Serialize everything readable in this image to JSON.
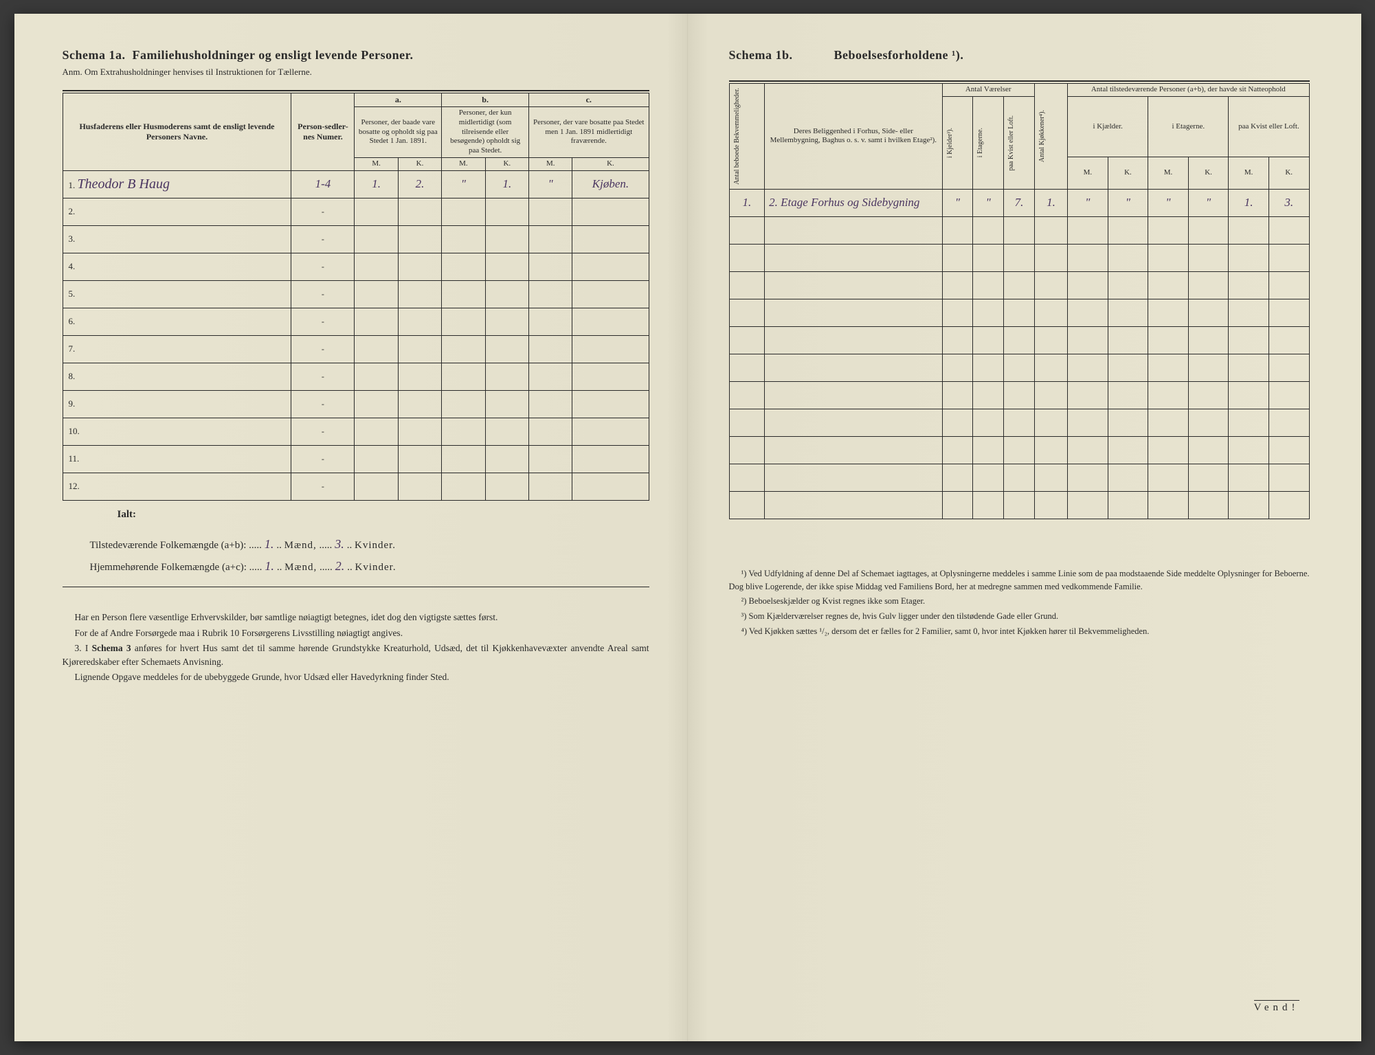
{
  "left": {
    "schema_label": "Schema 1a.",
    "schema_title": "Familiehusholdninger og ensligt levende Personer.",
    "anm": "Anm. Om Extrahusholdninger henvises til Instruktionen for Tællerne.",
    "col_names": "Husfaderens eller Husmoderens samt de ensligt levende Personers Navne.",
    "col_person": "Person-sedler-nes Numer.",
    "group_a": "a.",
    "group_b": "b.",
    "group_c": "c.",
    "col_a": "Personer, der baade vare bosatte og opholdt sig paa Stedet 1 Jan. 1891.",
    "col_b": "Personer, der kun midlertidigt (som tilreisende eller besøgende) opholdt sig paa Stedet.",
    "col_c": "Personer, der vare bosatte paa Stedet men 1 Jan. 1891 midlertidigt fraværende.",
    "m": "M.",
    "k": "K.",
    "rows": [
      {
        "n": "1.",
        "name": "Theodor B Haug",
        "pn": "1-4",
        "am": "1.",
        "ak": "2.",
        "bm": "\"",
        "bk": "1.",
        "cm": "\"",
        "ck": "Kjøben."
      },
      {
        "n": "2.",
        "name": "",
        "pn": "-",
        "am": "",
        "ak": "",
        "bm": "",
        "bk": "",
        "cm": "",
        "ck": ""
      },
      {
        "n": "3.",
        "name": "",
        "pn": "-",
        "am": "",
        "ak": "",
        "bm": "",
        "bk": "",
        "cm": "",
        "ck": ""
      },
      {
        "n": "4.",
        "name": "",
        "pn": "-",
        "am": "",
        "ak": "",
        "bm": "",
        "bk": "",
        "cm": "",
        "ck": ""
      },
      {
        "n": "5.",
        "name": "",
        "pn": "-",
        "am": "",
        "ak": "",
        "bm": "",
        "bk": "",
        "cm": "",
        "ck": ""
      },
      {
        "n": "6.",
        "name": "",
        "pn": "-",
        "am": "",
        "ak": "",
        "bm": "",
        "bk": "",
        "cm": "",
        "ck": ""
      },
      {
        "n": "7.",
        "name": "",
        "pn": "-",
        "am": "",
        "ak": "",
        "bm": "",
        "bk": "",
        "cm": "",
        "ck": ""
      },
      {
        "n": "8.",
        "name": "",
        "pn": "-",
        "am": "",
        "ak": "",
        "bm": "",
        "bk": "",
        "cm": "",
        "ck": ""
      },
      {
        "n": "9.",
        "name": "",
        "pn": "-",
        "am": "",
        "ak": "",
        "bm": "",
        "bk": "",
        "cm": "",
        "ck": ""
      },
      {
        "n": "10.",
        "name": "",
        "pn": "-",
        "am": "",
        "ak": "",
        "bm": "",
        "bk": "",
        "cm": "",
        "ck": ""
      },
      {
        "n": "11.",
        "name": "",
        "pn": "-",
        "am": "",
        "ak": "",
        "bm": "",
        "bk": "",
        "cm": "",
        "ck": ""
      },
      {
        "n": "12.",
        "name": "",
        "pn": "-",
        "am": "",
        "ak": "",
        "bm": "",
        "bk": "",
        "cm": "",
        "ck": ""
      }
    ],
    "ialt": "Ialt:",
    "sum1_label": "Tilstedeværende Folkemængde (a+b):",
    "sum1_m": "1.",
    "sum1_mu": "Mænd,",
    "sum1_k": "3.",
    "sum1_ku": "Kvinder.",
    "sum2_label": "Hjemmehørende Folkemængde (a+c):",
    "sum2_m": "1.",
    "sum2_mu": "Mænd,",
    "sum2_k": "2.",
    "sum2_ku": "Kvinder.",
    "instr1": "Har en Person flere væsentlige Erhvervskilder, bør samtlige nøiagtigt betegnes, idet dog den vigtigste sættes først.",
    "instr2": "For de af Andre Forsørgede maa i Rubrik 10 Forsørgerens Livsstilling nøiagtigt angives.",
    "instr3a": "3. I ",
    "instr3b": "Schema 3",
    "instr3c": " anføres for hvert Hus samt det til samme hørende Grundstykke Kreaturhold, Udsæd, det til Kjøkkenhavevæxter anvendte Areal samt Kjøreredskaber efter Schemaets Anvisning.",
    "instr4": "Lignende Opgave meddeles for de ubebyggede Grunde, hvor Udsæd eller Havedyrkning finder Sted."
  },
  "right": {
    "schema_label": "Schema 1b.",
    "schema_title": "Beboelsesforholdene ¹).",
    "col_bekvem": "Antal beboede Bekvemmeligheder.",
    "col_belig": "Deres Beliggenhed i Forhus, Side- eller Mellembygning, Baghus o. s. v. samt i hvilken Etage²).",
    "grp_antal": "Antal Værelser",
    "col_kjelder": "i Kjelder³).",
    "col_etagerne": "i Etagerne.",
    "col_kvist": "paa Kvist eller Loft.",
    "col_kjokken": "Antal Kjøkkener⁴).",
    "grp_present": "Antal tilstedeværende Personer (a+b), der havde sit Natteophold",
    "col_p_kjael": "i Kjælder.",
    "col_p_etag": "i Etagerne.",
    "col_p_kvist": "paa Kvist eller Loft.",
    "m": "M.",
    "k": "K.",
    "rows": [
      {
        "n": "1.",
        "belig": "2. Etage Forhus og Sidebygning",
        "kj": "\"",
        "et": "\"",
        "kv": "7.",
        "kk": "1.",
        "km": "\"",
        "kk2": "\"",
        "em": "\"",
        "ek": "\"",
        "lm": "1.",
        "lk": "3."
      },
      {
        "n": "",
        "belig": "",
        "kj": "",
        "et": "",
        "kv": "",
        "kk": "",
        "km": "",
        "kk2": "",
        "em": "",
        "ek": "",
        "lm": "",
        "lk": ""
      },
      {
        "n": "",
        "belig": "",
        "kj": "",
        "et": "",
        "kv": "",
        "kk": "",
        "km": "",
        "kk2": "",
        "em": "",
        "ek": "",
        "lm": "",
        "lk": ""
      },
      {
        "n": "",
        "belig": "",
        "kj": "",
        "et": "",
        "kv": "",
        "kk": "",
        "km": "",
        "kk2": "",
        "em": "",
        "ek": "",
        "lm": "",
        "lk": ""
      },
      {
        "n": "",
        "belig": "",
        "kj": "",
        "et": "",
        "kv": "",
        "kk": "",
        "km": "",
        "kk2": "",
        "em": "",
        "ek": "",
        "lm": "",
        "lk": ""
      },
      {
        "n": "",
        "belig": "",
        "kj": "",
        "et": "",
        "kv": "",
        "kk": "",
        "km": "",
        "kk2": "",
        "em": "",
        "ek": "",
        "lm": "",
        "lk": ""
      },
      {
        "n": "",
        "belig": "",
        "kj": "",
        "et": "",
        "kv": "",
        "kk": "",
        "km": "",
        "kk2": "",
        "em": "",
        "ek": "",
        "lm": "",
        "lk": ""
      },
      {
        "n": "",
        "belig": "",
        "kj": "",
        "et": "",
        "kv": "",
        "kk": "",
        "km": "",
        "kk2": "",
        "em": "",
        "ek": "",
        "lm": "",
        "lk": ""
      },
      {
        "n": "",
        "belig": "",
        "kj": "",
        "et": "",
        "kv": "",
        "kk": "",
        "km": "",
        "kk2": "",
        "em": "",
        "ek": "",
        "lm": "",
        "lk": ""
      },
      {
        "n": "",
        "belig": "",
        "kj": "",
        "et": "",
        "kv": "",
        "kk": "",
        "km": "",
        "kk2": "",
        "em": "",
        "ek": "",
        "lm": "",
        "lk": ""
      },
      {
        "n": "",
        "belig": "",
        "kj": "",
        "et": "",
        "kv": "",
        "kk": "",
        "km": "",
        "kk2": "",
        "em": "",
        "ek": "",
        "lm": "",
        "lk": ""
      },
      {
        "n": "",
        "belig": "",
        "kj": "",
        "et": "",
        "kv": "",
        "kk": "",
        "km": "",
        "kk2": "",
        "em": "",
        "ek": "",
        "lm": "",
        "lk": ""
      }
    ],
    "fn1": "¹) Ved Udfyldning af denne Del af Schemaet iagttages, at Oplysningerne meddeles i samme Linie som de paa modstaaende Side meddelte Oplysninger for Beboerne. Dog blive Logerende, der ikke spise Middag ved Familiens Bord, her at medregne sammen med vedkommende Familie.",
    "fn2": "²) Beboelseskjælder og Kvist regnes ikke som Etager.",
    "fn3": "³) Som Kjælderværelser regnes de, hvis Gulv ligger under den tilstødende Gade eller Grund.",
    "fn4": "⁴) Ved Kjøkken sættes ¹/₂, dersom det er fælles for 2 Familier, samt 0, hvor intet Kjøkken hører til Bekvemmeligheden.",
    "vend": "Vend!"
  }
}
